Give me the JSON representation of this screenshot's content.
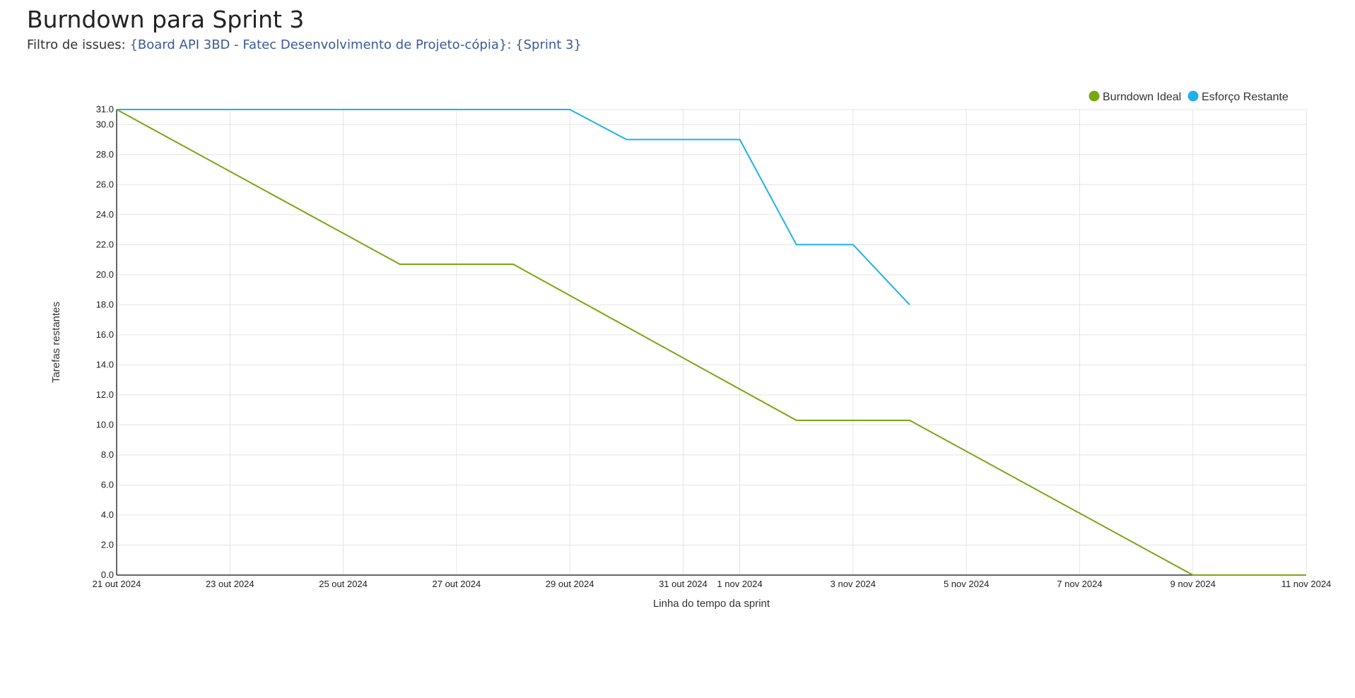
{
  "header": {
    "title": "Burndown para Sprint 3",
    "filter_prefix": "Filtro de issues:",
    "filter_board": "{Board API 3BD - Fatec Desenvolvimento de Projeto-cópia}",
    "filter_separator": ":",
    "filter_sprint": "{Sprint 3}"
  },
  "colors": {
    "ideal": "#7aa60f",
    "remaining": "#1fb0ec",
    "grid": "#e5e5e5",
    "axis": "#333333",
    "link": "#3b5998"
  },
  "chart_data": {
    "type": "line",
    "title": "",
    "xlabel": "Linha do tempo da sprint",
    "ylabel": "Tarefas restantes",
    "xlim": [
      "2024-10-21",
      "2024-11-11"
    ],
    "ylim": [
      0,
      31
    ],
    "yticks": [
      0,
      2,
      4,
      6,
      8,
      10,
      12,
      14,
      16,
      18,
      20,
      22,
      24,
      26,
      28,
      30,
      31
    ],
    "ytick_labels": [
      "0.0",
      "2.0",
      "4.0",
      "6.0",
      "8.0",
      "10.0",
      "12.0",
      "14.0",
      "16.0",
      "18.0",
      "20.0",
      "22.0",
      "24.0",
      "26.0",
      "28.0",
      "30.0",
      "31.0"
    ],
    "xticks": [
      {
        "date": "2024-10-21",
        "label": "21 out 2024"
      },
      {
        "date": "2024-10-23",
        "label": "23 out 2024"
      },
      {
        "date": "2024-10-25",
        "label": "25 out 2024"
      },
      {
        "date": "2024-10-27",
        "label": "27 out 2024"
      },
      {
        "date": "2024-10-29",
        "label": "29 out 2024"
      },
      {
        "date": "2024-10-31",
        "label": "31 out 2024"
      },
      {
        "date": "2024-11-01",
        "label": "1 nov 2024"
      },
      {
        "date": "2024-11-03",
        "label": "3 nov 2024"
      },
      {
        "date": "2024-11-05",
        "label": "5 nov 2024"
      },
      {
        "date": "2024-11-07",
        "label": "7 nov 2024"
      },
      {
        "date": "2024-11-09",
        "label": "9 nov 2024"
      },
      {
        "date": "2024-11-11",
        "label": "11 nov 2024"
      }
    ],
    "grid": true,
    "legend_position": "top-right",
    "series": [
      {
        "name": "Burndown Ideal",
        "color": "#7aa60f",
        "points": [
          {
            "x": "2024-10-21",
            "y": 31
          },
          {
            "x": "2024-10-26",
            "y": 20.7
          },
          {
            "x": "2024-10-28",
            "y": 20.7
          },
          {
            "x": "2024-11-02",
            "y": 10.3
          },
          {
            "x": "2024-11-04",
            "y": 10.3
          },
          {
            "x": "2024-11-09",
            "y": 0
          },
          {
            "x": "2024-11-11",
            "y": 0
          }
        ]
      },
      {
        "name": "Esforço Restante",
        "color": "#1fb0ec",
        "points": [
          {
            "x": "2024-10-21",
            "y": 31
          },
          {
            "x": "2024-10-29",
            "y": 31
          },
          {
            "x": "2024-10-30",
            "y": 29
          },
          {
            "x": "2024-11-01",
            "y": 29
          },
          {
            "x": "2024-11-02",
            "y": 22
          },
          {
            "x": "2024-11-03",
            "y": 22
          },
          {
            "x": "2024-11-04",
            "y": 18
          }
        ]
      }
    ]
  }
}
